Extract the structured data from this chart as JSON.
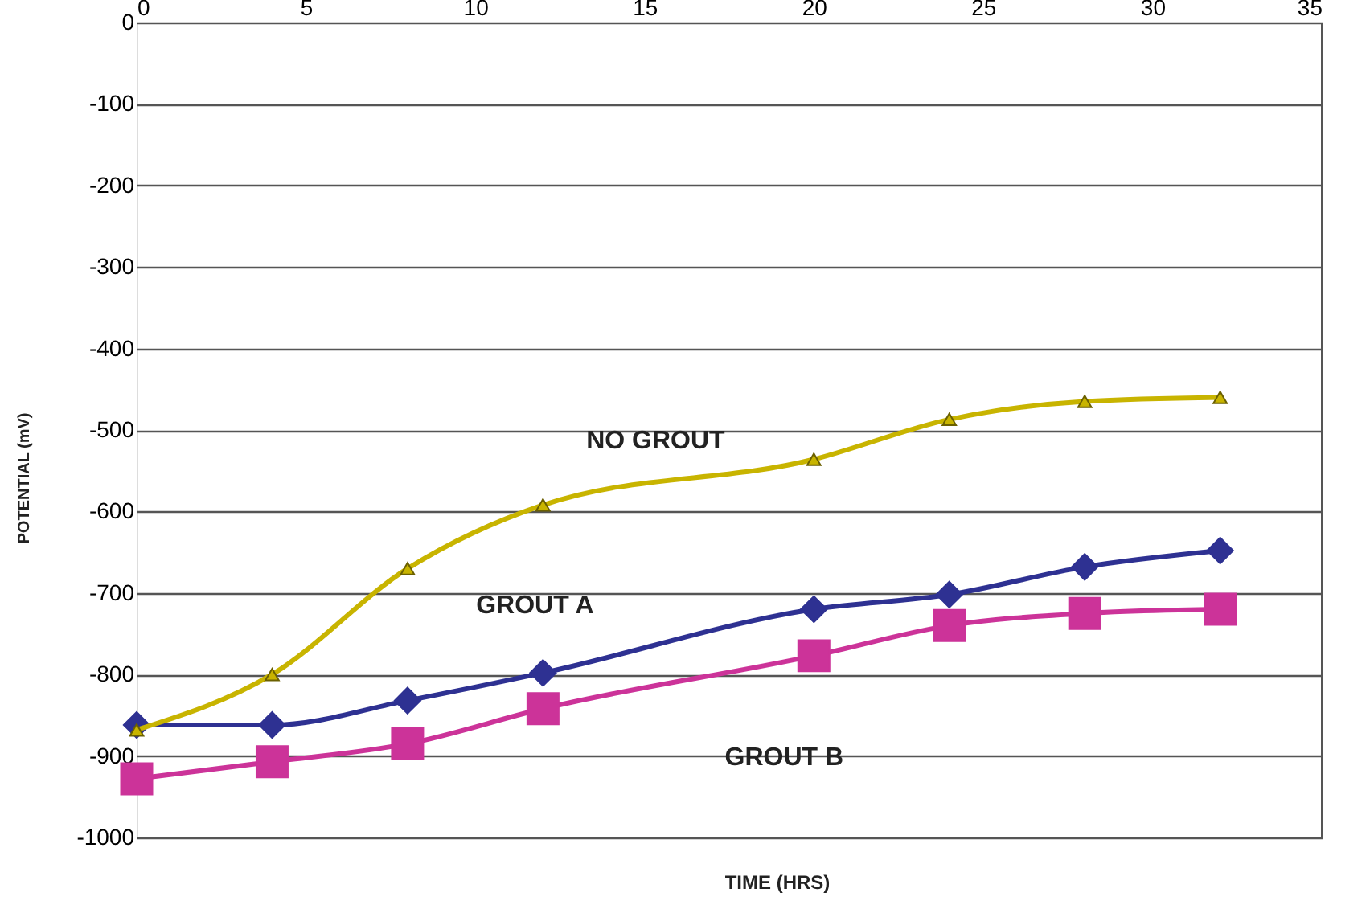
{
  "chart_data": {
    "type": "line",
    "xlabel": "TIME (HRS)",
    "ylabel": "POTENTIAL (mV)",
    "x": [
      0,
      4,
      8,
      12,
      20,
      24,
      28,
      32
    ],
    "series": [
      {
        "name": "NO GROUT",
        "color": "#c8b400",
        "marker": "triangle",
        "values": [
          -868,
          -800,
          -670,
          -592,
          -536,
          -487,
          -465,
          -460
        ]
      },
      {
        "name": "GROUT A",
        "color": "#2e3192",
        "marker": "diamond",
        "values": [
          -862,
          -862,
          -832,
          -798,
          -720,
          -702,
          -668,
          -648
        ]
      },
      {
        "name": "GROUT B",
        "color": "#cc3399",
        "marker": "square",
        "values": [
          -928,
          -907,
          -885,
          -842,
          -777,
          -740,
          -725,
          -720
        ]
      }
    ],
    "xlim": [
      0,
      35
    ],
    "xticks": [
      0,
      5,
      10,
      15,
      20,
      25,
      30,
      35
    ],
    "ylim": [
      -1000,
      0
    ],
    "yticks": [
      0,
      -100,
      -200,
      -300,
      -400,
      -500,
      -600,
      -700,
      -800,
      -900,
      -1000
    ],
    "grid": "y",
    "legend": false
  }
}
